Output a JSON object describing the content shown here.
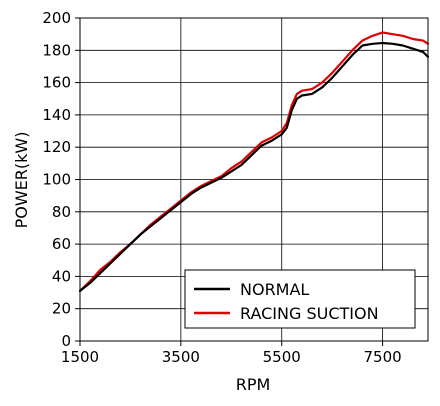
{
  "chart_data": {
    "type": "line",
    "title": "",
    "xlabel": "RPM",
    "ylabel": "POWER(kW)",
    "xlim": [
      1500,
      8400
    ],
    "ylim": [
      0,
      200
    ],
    "xticks": [
      1500,
      3500,
      5500,
      7500
    ],
    "xtick_labels": [
      "1500",
      "3500",
      "5500",
      "7500"
    ],
    "yticks": [
      0,
      20,
      40,
      60,
      80,
      100,
      120,
      140,
      160,
      180,
      200
    ],
    "ytick_labels": [
      "0",
      "20",
      "40",
      "60",
      "80",
      "100",
      "120",
      "140",
      "160",
      "180",
      "200"
    ],
    "grid": true,
    "legend_position": "bottom-right",
    "series": [
      {
        "name": "NORMAL",
        "color": "#000000",
        "points": [
          [
            1500,
            31
          ],
          [
            1700,
            36
          ],
          [
            1900,
            42
          ],
          [
            2100,
            48
          ],
          [
            2300,
            54
          ],
          [
            2500,
            60
          ],
          [
            2700,
            66
          ],
          [
            2900,
            71
          ],
          [
            3100,
            76
          ],
          [
            3300,
            81
          ],
          [
            3500,
            86
          ],
          [
            3700,
            91
          ],
          [
            3900,
            95
          ],
          [
            4100,
            98
          ],
          [
            4300,
            101
          ],
          [
            4500,
            105
          ],
          [
            4700,
            109
          ],
          [
            4900,
            115
          ],
          [
            5100,
            121
          ],
          [
            5300,
            124
          ],
          [
            5500,
            128
          ],
          [
            5600,
            132
          ],
          [
            5700,
            143
          ],
          [
            5800,
            150
          ],
          [
            5900,
            152
          ],
          [
            6100,
            153
          ],
          [
            6300,
            157
          ],
          [
            6500,
            163
          ],
          [
            6700,
            170
          ],
          [
            6900,
            177
          ],
          [
            7100,
            183
          ],
          [
            7300,
            184
          ],
          [
            7500,
            184.5
          ],
          [
            7700,
            184
          ],
          [
            7900,
            183
          ],
          [
            8100,
            181
          ],
          [
            8300,
            179
          ],
          [
            8400,
            176
          ]
        ]
      },
      {
        "name": "RACING SUCTION",
        "color": "#e00000",
        "points": [
          [
            1500,
            31
          ],
          [
            1700,
            37
          ],
          [
            1900,
            44
          ],
          [
            2100,
            49
          ],
          [
            2300,
            55
          ],
          [
            2500,
            60
          ],
          [
            2700,
            66
          ],
          [
            2900,
            72
          ],
          [
            3100,
            77
          ],
          [
            3300,
            82
          ],
          [
            3500,
            87
          ],
          [
            3700,
            92
          ],
          [
            3900,
            96
          ],
          [
            4100,
            99
          ],
          [
            4300,
            102
          ],
          [
            4500,
            107
          ],
          [
            4700,
            111
          ],
          [
            4900,
            117
          ],
          [
            5100,
            123
          ],
          [
            5300,
            126
          ],
          [
            5500,
            130
          ],
          [
            5600,
            135
          ],
          [
            5700,
            146
          ],
          [
            5800,
            153
          ],
          [
            5900,
            155
          ],
          [
            6100,
            156
          ],
          [
            6300,
            160
          ],
          [
            6500,
            166
          ],
          [
            6700,
            173
          ],
          [
            6900,
            180
          ],
          [
            7100,
            186
          ],
          [
            7300,
            189
          ],
          [
            7500,
            191
          ],
          [
            7700,
            190
          ],
          [
            7900,
            189
          ],
          [
            8100,
            187
          ],
          [
            8300,
            186
          ],
          [
            8400,
            184
          ]
        ]
      }
    ]
  }
}
